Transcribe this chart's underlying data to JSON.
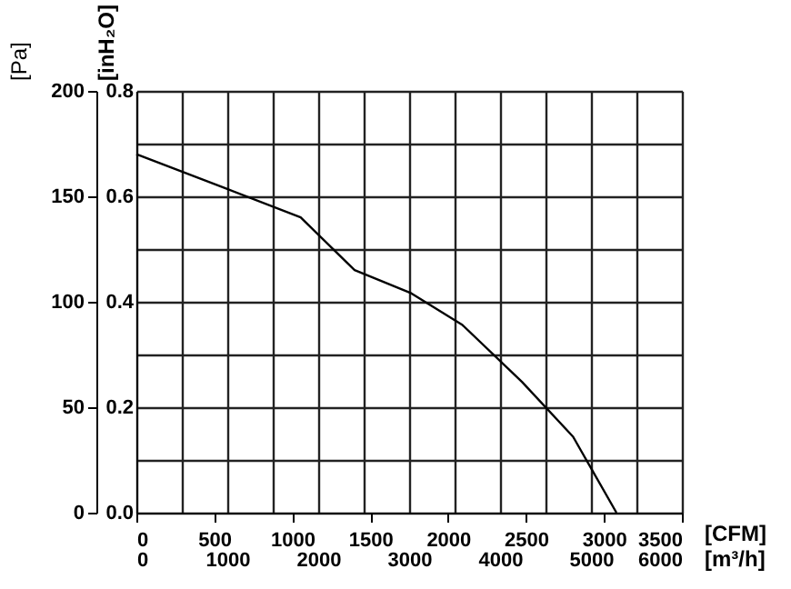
{
  "chart_data": {
    "type": "line",
    "x": [
      0,
      564,
      1054,
      1400,
      1764,
      2092,
      2474,
      2802,
      2856,
      3080
    ],
    "series": [
      {
        "color": "#000000",
        "values": [
          170,
          154,
          140,
          115,
          104,
          89,
          62,
          36,
          29,
          0
        ]
      }
    ],
    "xlabel": "[CFM]",
    "ylabel": "[Pa]",
    "x2label": "[m³/h]",
    "y2label": "[inH₂O]",
    "xlim": [
      0,
      3500
    ],
    "xticks": [
      0,
      500,
      1000,
      1500,
      2000,
      2500,
      3000,
      3500
    ],
    "x2lim": [
      0,
      6000
    ],
    "x2ticks": [
      0,
      {
        "value": 500,
        "label": null
      },
      1000,
      {
        "value": 1500,
        "label": null
      },
      2000,
      {
        "value": 2500,
        "label": null
      },
      3000,
      {
        "value": 3500,
        "label": null
      },
      4000,
      {
        "value": 4500,
        "label": null
      },
      5000,
      {
        "value": 5500,
        "label": null
      },
      6000
    ],
    "ylim": [
      0,
      200
    ],
    "yticks": [
      0,
      50,
      100,
      150,
      200
    ],
    "y2lim": [
      0,
      0.8
    ],
    "y2ticks": [
      {
        "value": 0,
        "label": "0.0"
      },
      {
        "value": 0.1,
        "label": null
      },
      0.2,
      {
        "value": 0.3,
        "label": null
      },
      0.4,
      {
        "value": 0.5,
        "label": null
      },
      0.6,
      {
        "value": 0.7,
        "label": null
      },
      0.8
    ],
    "grid": true,
    "legend": false,
    "marker": "none",
    "line_style": "solid"
  }
}
